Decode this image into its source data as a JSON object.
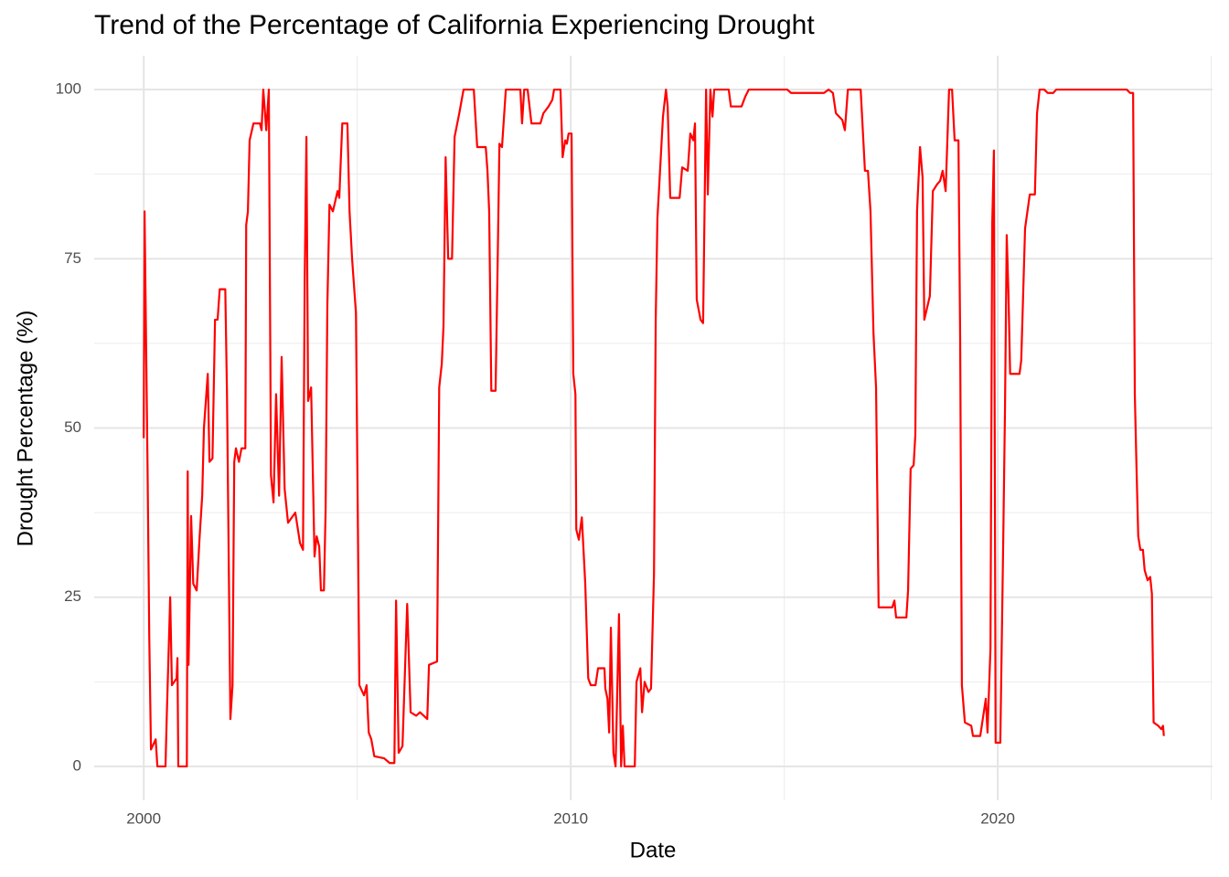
{
  "chart_data": {
    "type": "line",
    "title": "Trend of the Percentage of California Experiencing Drought",
    "x_label": "Date",
    "y_label": "Drought Percentage (%)",
    "color": "#ff0000",
    "x": [
      2000.0,
      2000.02,
      2000.09,
      2000.13,
      2000.17,
      2000.28,
      2000.32,
      2000.51,
      2000.54,
      2000.62,
      2000.66,
      2000.77,
      2000.79,
      2000.81,
      2001.01,
      2001.03,
      2001.05,
      2001.11,
      2001.16,
      2001.24,
      2001.31,
      2001.37,
      2001.41,
      2001.5,
      2001.54,
      2001.61,
      2001.67,
      2001.73,
      2001.78,
      2001.91,
      2001.95,
      2002.03,
      2002.08,
      2002.12,
      2002.16,
      2002.23,
      2002.29,
      2002.38,
      2002.4,
      2002.44,
      2002.48,
      2002.57,
      2002.72,
      2002.76,
      2002.8,
      2002.87,
      2002.93,
      2002.98,
      2003.04,
      2003.1,
      2003.17,
      2003.23,
      2003.3,
      2003.38,
      2003.55,
      2003.66,
      2003.73,
      2003.77,
      2003.81,
      2003.85,
      2003.92,
      2004.0,
      2004.05,
      2004.11,
      2004.15,
      2004.22,
      2004.26,
      2004.3,
      2004.35,
      2004.43,
      2004.54,
      2004.58,
      2004.65,
      2004.77,
      2004.82,
      2004.88,
      2004.97,
      2005.05,
      2005.16,
      2005.22,
      2005.27,
      2005.33,
      2005.4,
      2005.63,
      2005.76,
      2005.87,
      2005.91,
      2005.97,
      2006.06,
      2006.17,
      2006.25,
      2006.38,
      2006.47,
      2006.64,
      2006.68,
      2006.87,
      2006.92,
      2006.98,
      2007.02,
      2007.07,
      2007.13,
      2007.22,
      2007.28,
      2007.39,
      2007.49,
      2007.73,
      2007.81,
      2008.01,
      2008.05,
      2008.09,
      2008.14,
      2008.24,
      2008.29,
      2008.33,
      2008.39,
      2008.48,
      2008.82,
      2008.86,
      2008.91,
      2008.99,
      2009.08,
      2009.29,
      2009.36,
      2009.48,
      2009.57,
      2009.61,
      2009.76,
      2009.81,
      2009.87,
      2009.91,
      2009.95,
      2010.02,
      2010.06,
      2010.11,
      2010.13,
      2010.19,
      2010.26,
      2010.34,
      2010.41,
      2010.47,
      2010.58,
      2010.64,
      2010.79,
      2010.81,
      2010.86,
      2010.9,
      2010.94,
      2011.0,
      2011.05,
      2011.13,
      2011.18,
      2011.22,
      2011.26,
      2011.5,
      2011.54,
      2011.63,
      2011.67,
      2011.73,
      2011.82,
      2011.88,
      2011.95,
      2011.99,
      2012.03,
      2012.1,
      2012.16,
      2012.23,
      2012.27,
      2012.33,
      2012.55,
      2012.61,
      2012.74,
      2012.8,
      2012.87,
      2012.91,
      2012.95,
      2013.04,
      2013.1,
      2013.17,
      2013.21,
      2013.27,
      2013.32,
      2013.36,
      2013.7,
      2013.75,
      2014.0,
      2014.09,
      2014.17,
      2015.07,
      2015.16,
      2015.93,
      2016.04,
      2016.14,
      2016.21,
      2016.36,
      2016.42,
      2016.49,
      2016.79,
      2016.89,
      2016.96,
      2017.02,
      2017.09,
      2017.15,
      2017.21,
      2017.53,
      2017.58,
      2017.62,
      2017.86,
      2017.9,
      2017.96,
      2018.03,
      2018.07,
      2018.11,
      2018.18,
      2018.24,
      2018.28,
      2018.41,
      2018.48,
      2018.58,
      2018.65,
      2018.71,
      2018.78,
      2018.86,
      2018.93,
      2018.99,
      2019.08,
      2019.12,
      2019.16,
      2019.23,
      2019.38,
      2019.42,
      2019.59,
      2019.72,
      2019.76,
      2019.83,
      2019.87,
      2019.91,
      2019.95,
      2020.06,
      2020.13,
      2020.17,
      2020.21,
      2020.25,
      2020.29,
      2020.51,
      2020.55,
      2020.64,
      2020.75,
      2020.87,
      2020.92,
      2020.98,
      2021.09,
      2021.17,
      2021.3,
      2021.37,
      2023.02,
      2023.1,
      2023.17,
      2023.21,
      2023.25,
      2023.29,
      2023.34,
      2023.4,
      2023.44,
      2023.51,
      2023.57,
      2023.61,
      2023.65,
      2023.76,
      2023.83,
      2023.87,
      2023.89
    ],
    "values": [
      48.5,
      82,
      44,
      19,
      2.5,
      4,
      0,
      0,
      7.5,
      25,
      12,
      13,
      16,
      0,
      0,
      43.6,
      15,
      37,
      27,
      26,
      34,
      40,
      50,
      58,
      45,
      45.5,
      66,
      66,
      70.5,
      70.5,
      55,
      7,
      12,
      45,
      47,
      45,
      47,
      47,
      80,
      82,
      92.5,
      95,
      95,
      94,
      100,
      94,
      100,
      43,
      39,
      55,
      40,
      60.5,
      41,
      36,
      37.5,
      33,
      32,
      72,
      93,
      54,
      56,
      31,
      34,
      32.5,
      26,
      26,
      38,
      68,
      83,
      82,
      85,
      84,
      95,
      95,
      82,
      75,
      67,
      12,
      10.5,
      12,
      5,
      4,
      1.5,
      1.2,
      0.5,
      0.5,
      24.5,
      2,
      3,
      24,
      8,
      7.5,
      8,
      7,
      15,
      15.5,
      56,
      59.5,
      65,
      90,
      75,
      75,
      93,
      96.5,
      100,
      100,
      91.5,
      91.5,
      88,
      82,
      55.5,
      55.5,
      75,
      92,
      91.5,
      100,
      100,
      95,
      100,
      100,
      95,
      95,
      96.5,
      97.5,
      98.5,
      100,
      100,
      90,
      92.5,
      92,
      93.5,
      93.5,
      58,
      55,
      35,
      33.5,
      36.8,
      27,
      13,
      12,
      12,
      14.5,
      14.5,
      11.5,
      10,
      5,
      20.5,
      2,
      0,
      22.5,
      0,
      6,
      0,
      0,
      12.5,
      14.5,
      8,
      12.5,
      11,
      11.5,
      28.5,
      66,
      81,
      89,
      96,
      100,
      97.5,
      84,
      84,
      88.5,
      88,
      93.5,
      92.5,
      95,
      69,
      66,
      65.5,
      100,
      84.5,
      100,
      96,
      100,
      100,
      97.5,
      97.5,
      99,
      100,
      100,
      99.5,
      99.5,
      100,
      99.5,
      96.5,
      95.5,
      94,
      100,
      100,
      88,
      88,
      82,
      64,
      56,
      23.5,
      23.5,
      24.5,
      22,
      22,
      26,
      44,
      44.5,
      49,
      82,
      91.5,
      87,
      66,
      69.5,
      85,
      86,
      86.5,
      88,
      85,
      100,
      100,
      92.5,
      92.5,
      63,
      12,
      6.5,
      6,
      4.5,
      4.5,
      10,
      5,
      17.5,
      80,
      91,
      3.5,
      3.5,
      34,
      53,
      78.5,
      70,
      58,
      58,
      60,
      79.5,
      84.5,
      84.5,
      96.5,
      100,
      100,
      99.5,
      99.5,
      100,
      100,
      99.5,
      99.5,
      55,
      44,
      34,
      32,
      32,
      29,
      27.5,
      28,
      25.5,
      6.5,
      6,
      5.5,
      6,
      4.5
    ],
    "xlim": [
      1998.84,
      2025.03
    ],
    "xticks": [
      2000,
      2010,
      2020
    ],
    "x_minor_gridlines": [
      2005,
      2015,
      2025
    ],
    "ylim": [
      -5,
      105
    ],
    "yticks": [
      0,
      25,
      50,
      75,
      100
    ],
    "y_minor_gridlines": [
      12.5,
      37.5,
      62.5,
      87.5
    ],
    "grid": true
  }
}
